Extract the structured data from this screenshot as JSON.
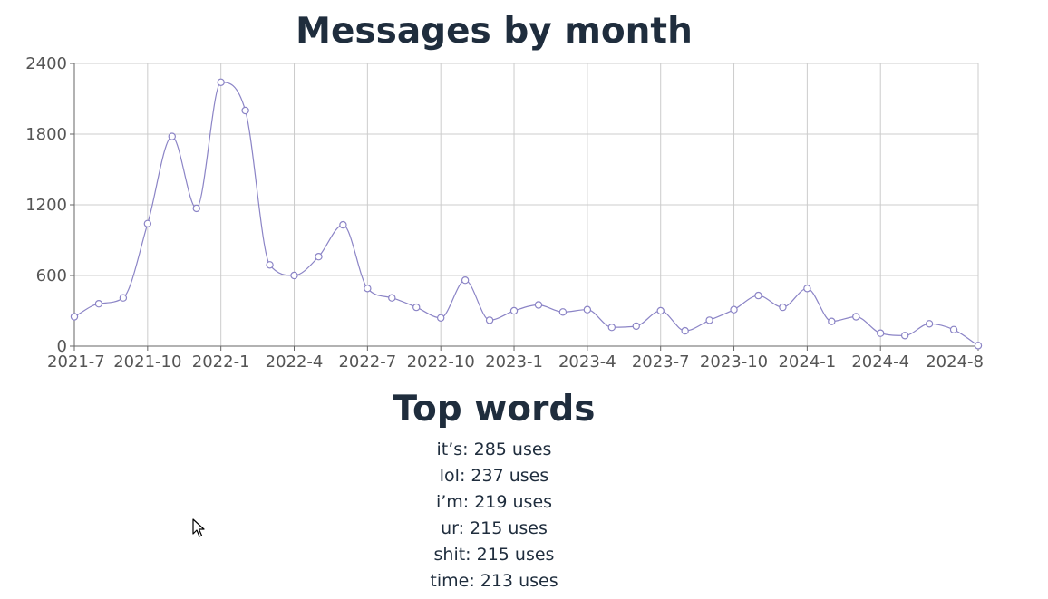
{
  "chart_data": {
    "type": "line",
    "title": "Messages by month",
    "x": [
      "2021-7",
      "2021-8",
      "2021-9",
      "2021-10",
      "2021-11",
      "2021-12",
      "2022-1",
      "2022-2",
      "2022-3",
      "2022-4",
      "2022-5",
      "2022-6",
      "2022-7",
      "2022-8",
      "2022-9",
      "2022-10",
      "2022-11",
      "2022-12",
      "2023-1",
      "2023-2",
      "2023-3",
      "2023-4",
      "2023-5",
      "2023-6",
      "2023-7",
      "2023-8",
      "2023-9",
      "2023-10",
      "2023-11",
      "2023-12",
      "2024-1",
      "2024-2",
      "2024-3",
      "2024-4",
      "2024-5",
      "2024-6",
      "2024-7",
      "2024-8"
    ],
    "series": [
      {
        "values": [
          250,
          360,
          410,
          1040,
          1780,
          1170,
          2240,
          2000,
          690,
          600,
          760,
          1030,
          490,
          410,
          330,
          240,
          560,
          220,
          300,
          350,
          290,
          310,
          160,
          170,
          300,
          130,
          220,
          310,
          430,
          330,
          490,
          210,
          250,
          110,
          90,
          190,
          140,
          5
        ]
      }
    ],
    "x_tick_labels": [
      "2021-7",
      "2021-10",
      "2022-1",
      "2022-4",
      "2022-7",
      "2022-10",
      "2023-1",
      "2023-4",
      "2023-7",
      "2023-10",
      "2024-1",
      "2024-4",
      "2024-8"
    ],
    "y_ticks": [
      "0",
      "600",
      "1200",
      "1800",
      "2400"
    ],
    "ylim": [
      0,
      2400
    ],
    "grid": true,
    "colors": {
      "line": "#8b84c6",
      "grid": "#cccccc",
      "axis": "#666666"
    }
  },
  "top_words": {
    "title": "Top words",
    "items": [
      {
        "text": "it’s: 285 uses"
      },
      {
        "text": "lol: 237 uses"
      },
      {
        "text": "i’m: 219 uses"
      },
      {
        "text": "ur: 215 uses"
      },
      {
        "text": "shit: 215 uses"
      },
      {
        "text": "time: 213 uses"
      }
    ]
  }
}
